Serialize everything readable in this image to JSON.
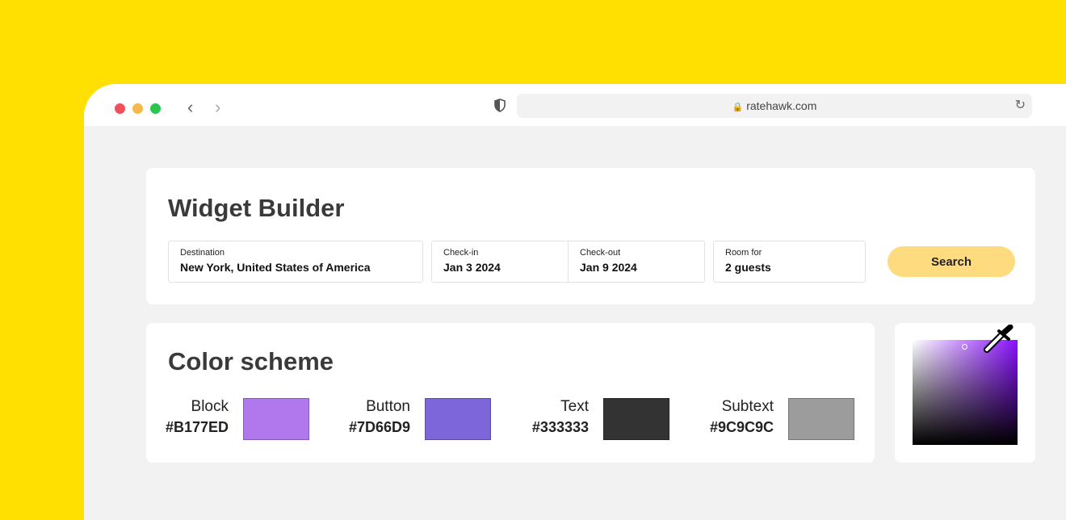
{
  "browser": {
    "url": "ratehawk.com"
  },
  "widget": {
    "title": "Widget Builder",
    "fields": [
      {
        "label": "Destination",
        "value": "New York, United States of America"
      },
      {
        "label": "Check-in",
        "value": "Jan 3 2024"
      },
      {
        "label": "Check-out",
        "value": "Jan 9 2024"
      },
      {
        "label": "Room for",
        "value": "2 guests"
      }
    ],
    "search_label": "Search",
    "search_color": "#FFDB80"
  },
  "scheme": {
    "title": "Color scheme",
    "swatches": [
      {
        "name": "Block",
        "hex": "#B177ED"
      },
      {
        "name": "Button",
        "hex": "#7D66D9"
      },
      {
        "name": "Text",
        "hex": "#333333"
      },
      {
        "name": "Subtext",
        "hex": "#9C9C9C"
      }
    ]
  },
  "picker": {
    "hue": "#8a10ff",
    "icon": "eyedropper-icon"
  }
}
